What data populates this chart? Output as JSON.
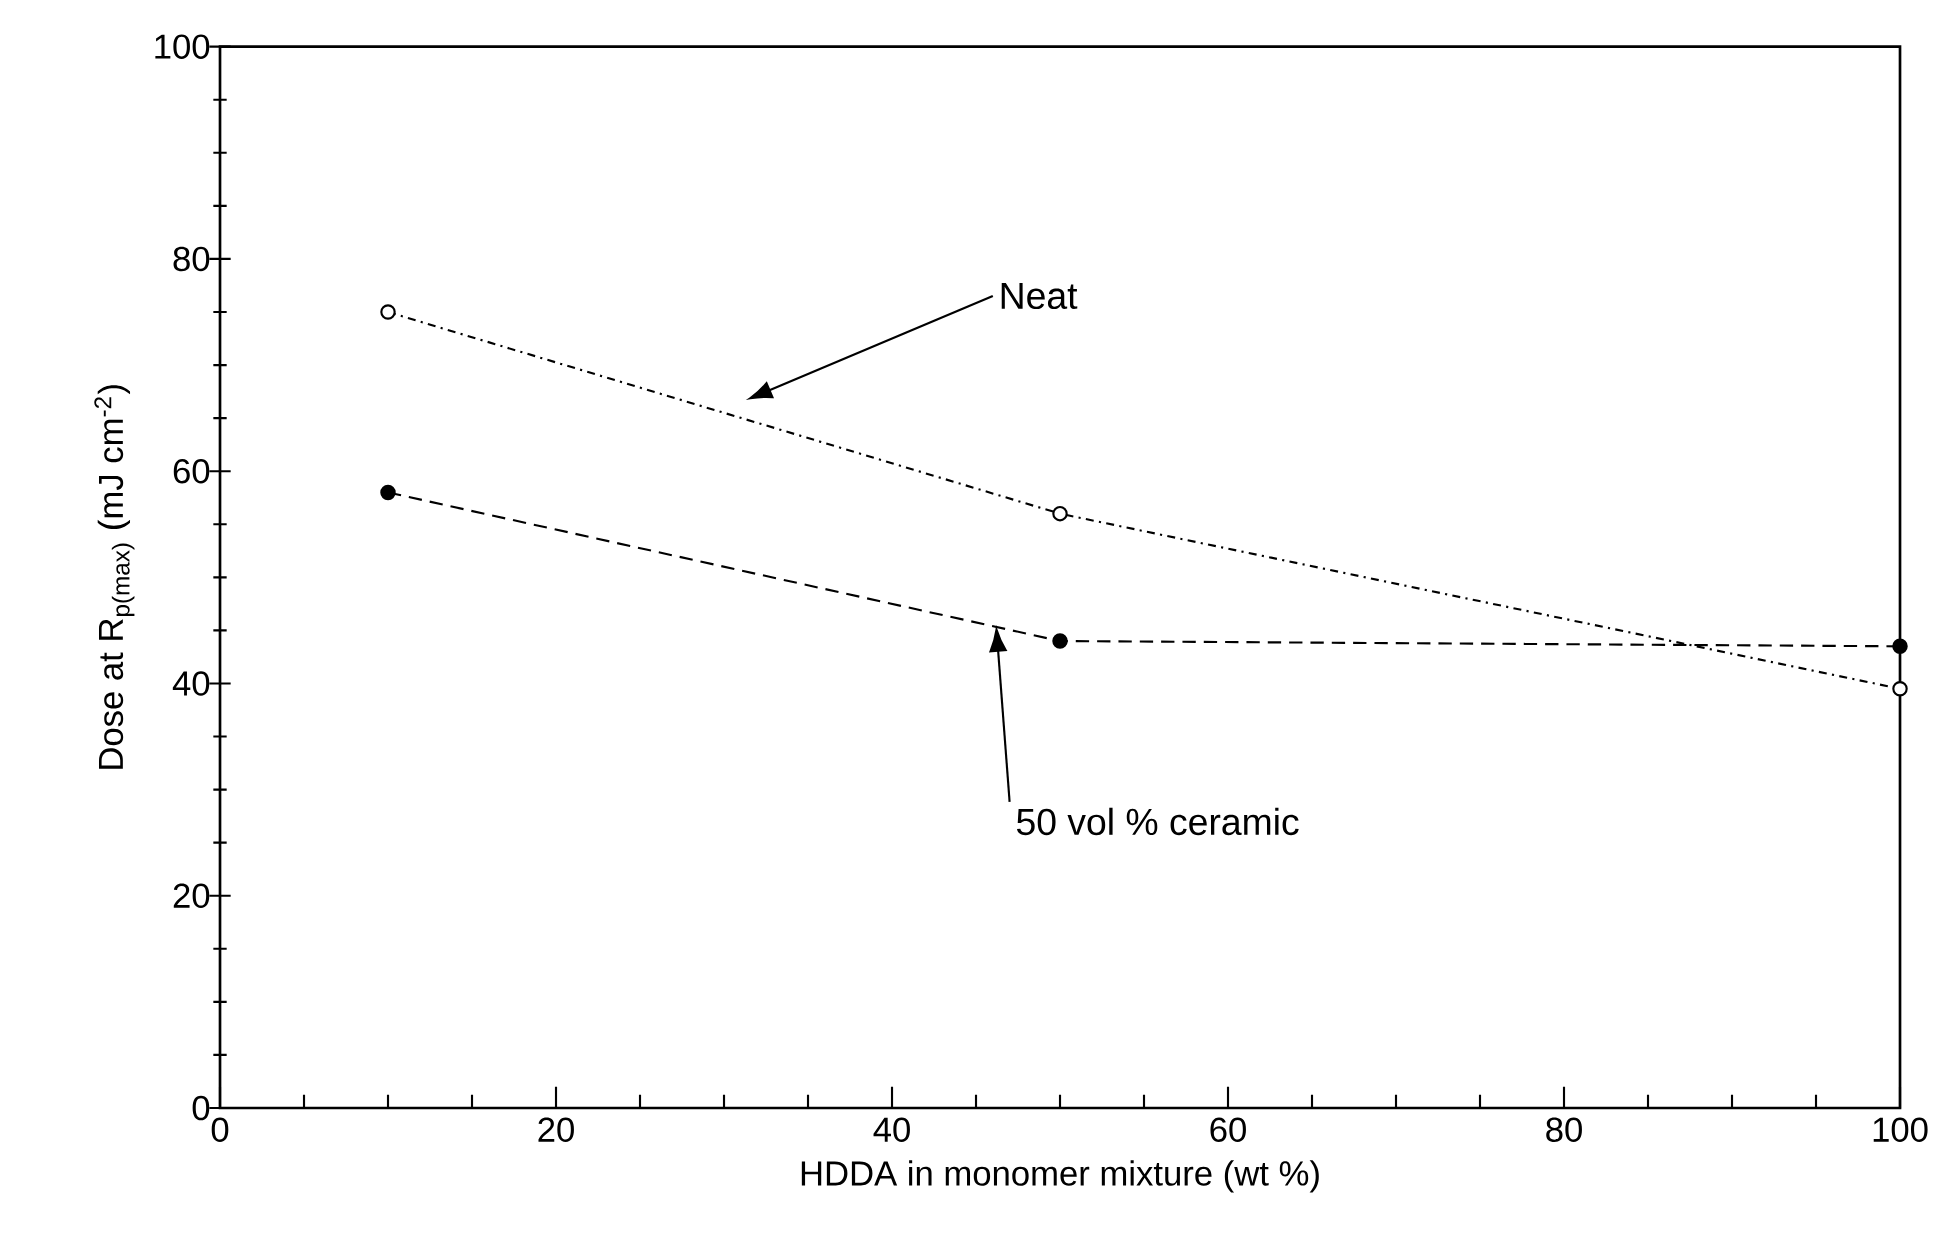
{
  "chart_data": {
    "type": "line",
    "xlabel": "HDDA in monomer mixture (wt %)",
    "ylabel": "Dose at R$_{p(max)}$ (mJ cm$^{-2}$)",
    "xlim": [
      0,
      100
    ],
    "ylim": [
      0,
      100
    ],
    "xticks": [
      0,
      20,
      40,
      60,
      80,
      100
    ],
    "yticks": [
      0,
      20,
      40,
      60,
      80,
      100
    ],
    "x": [
      10,
      50,
      100
    ],
    "marker": "circle",
    "grid": false,
    "series": [
      {
        "color": "#000000",
        "values": [
          75,
          56,
          39.5
        ],
        "line_style": "dotted"
      },
      {
        "color": "#000000",
        "values": [
          58,
          44,
          43.5
        ],
        "line_style": "dashed"
      }
    ],
    "annotations": [
      "Neat",
      "50 vol % ceramic"
    ]
  }
}
